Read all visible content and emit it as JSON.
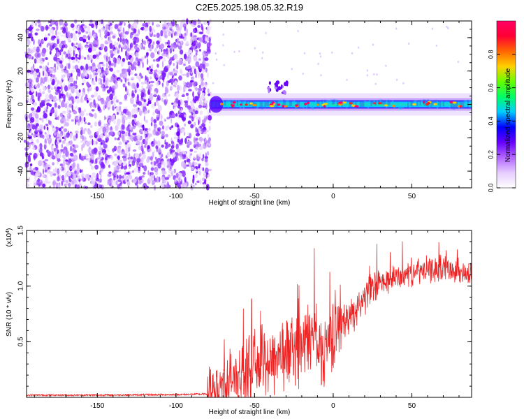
{
  "title": "C2E5.2025.198.05.32.R19",
  "chart_data": [
    {
      "type": "heatmap",
      "xlabel": "Height of straight line (km)",
      "ylabel": "Frequency (Hz)",
      "xlim": [
        -195,
        88
      ],
      "ylim": [
        -50,
        50
      ],
      "xticks": [
        -150,
        -100,
        -50,
        0,
        50
      ],
      "yticks": [
        -40,
        -20,
        0,
        20,
        40
      ],
      "colorbar": {
        "label": "Normalized spectral amplitude",
        "range": [
          0.0,
          1.0
        ],
        "ticks": [
          "0.0",
          "0.2",
          "0.4",
          "0.6",
          "0.8"
        ],
        "colors": [
          "#ffffff",
          "#e6ccff",
          "#b266ff",
          "#6600ff",
          "#0000ff",
          "#00ccff",
          "#00ff66",
          "#66ff00",
          "#ffd000",
          "#ff6600",
          "#ff0033",
          "#ff0066"
        ]
      },
      "noise_region_x": [
        -195,
        -78
      ],
      "signal_band": {
        "x_start": -78,
        "x_end": 88,
        "center_hz": 0,
        "features": [
          {
            "x": [
              -42,
              -28
            ],
            "y": [
              6,
              14
            ]
          }
        ]
      }
    },
    {
      "type": "line",
      "xlabel": "Height of straight line (km)",
      "ylabel": "SNR (10 * v/v)",
      "y_multiplier": "(x10",
      "y_multiplier_exp": "4",
      "y_multiplier_close": ")",
      "xlim": [
        -195,
        88
      ],
      "ylim": [
        0,
        1.5
      ],
      "xticks": [
        -150,
        -100,
        -50,
        0,
        50
      ],
      "yticks": [
        0.5,
        1.0,
        1.5
      ],
      "ytick_labels": [
        "0.5",
        "1.0",
        "1.5"
      ],
      "series": [
        {
          "color": "#ee2222",
          "x": [
            -195,
            -150,
            -100,
            -80,
            -75,
            -70,
            -65,
            -60,
            -55,
            -50,
            -45,
            -40,
            -35,
            -30,
            -25,
            -20,
            -15,
            -12,
            -10,
            -8,
            -5,
            -2,
            0,
            5,
            10,
            15,
            20,
            25,
            30,
            35,
            40,
            45,
            50,
            55,
            60,
            65,
            70,
            75,
            80,
            85,
            88
          ],
          "y": [
            0.02,
            0.02,
            0.025,
            0.03,
            0.06,
            0.12,
            0.16,
            0.2,
            0.24,
            0.28,
            0.3,
            0.34,
            0.38,
            0.4,
            0.44,
            0.46,
            0.52,
            0.6,
            0.5,
            0.4,
            0.45,
            0.55,
            0.6,
            0.65,
            0.72,
            0.8,
            0.9,
            0.98,
            1.02,
            1.05,
            1.08,
            1.1,
            1.12,
            1.13,
            1.14,
            1.15,
            1.16,
            1.16,
            1.15,
            1.1,
            1.12
          ]
        }
      ]
    }
  ]
}
